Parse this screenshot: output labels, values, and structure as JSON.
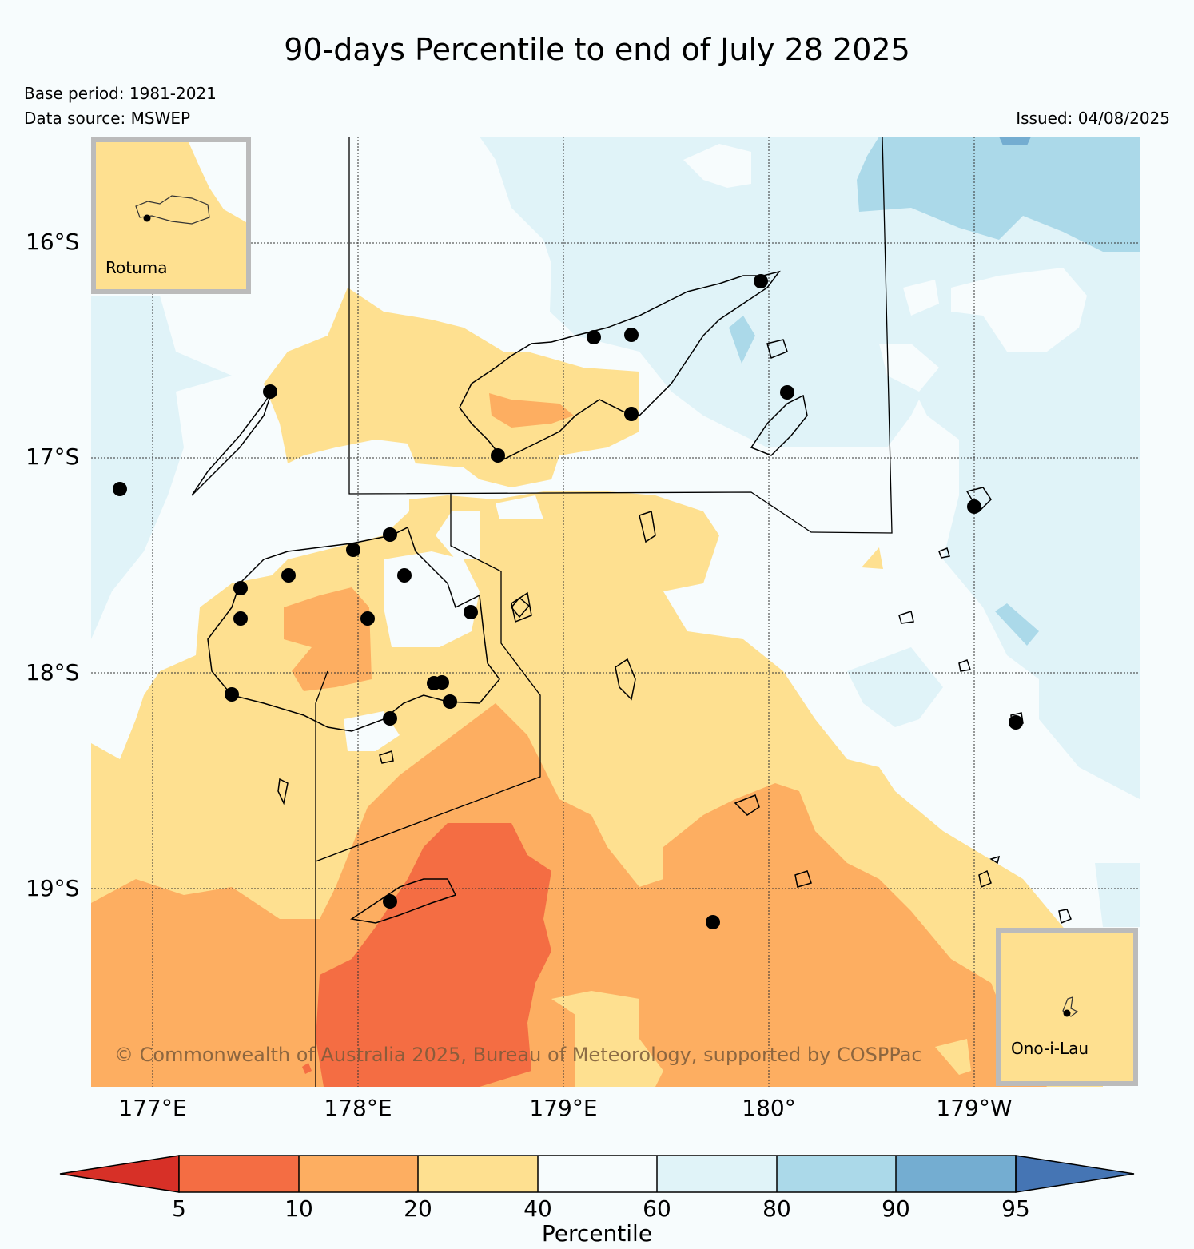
{
  "header": {
    "title": "90-days Percentile to end of July 28 2025",
    "base_period": "Base period: 1981-2021",
    "data_source": "Data source: MSWEP",
    "issued": "Issued: 04/08/2025"
  },
  "map": {
    "lon_labels": [
      "177°E",
      "178°E",
      "179°E",
      "180°",
      "179°W"
    ],
    "lat_labels": [
      "16°S",
      "17°S",
      "18°S",
      "19°S"
    ],
    "insets": {
      "rotuma": "Rotuma",
      "ono_i_lau": "Ono-i-Lau"
    },
    "copyright": "© Commonwealth of Australia 2025, Bureau of Meteorology, supported by COSPPac"
  },
  "colorbar": {
    "label": "Percentile",
    "ticks": [
      "5",
      "10",
      "20",
      "40",
      "60",
      "80",
      "90",
      "95"
    ],
    "colors": [
      "#d73027",
      "#f46d43",
      "#fdae61",
      "#fee090",
      "#f7fcfd",
      "#e0f3f8",
      "#abd9e9",
      "#74add1",
      "#4575b4"
    ]
  },
  "colors": {
    "pct_20_40": "#fee090",
    "pct_10_20": "#fdae61",
    "pct_5_10": "#f46d43",
    "pct_40_60": "#f7fcfd",
    "pct_60_80": "#e0f3f8",
    "pct_80_90": "#abd9e9",
    "pct_90_95": "#74add1"
  }
}
